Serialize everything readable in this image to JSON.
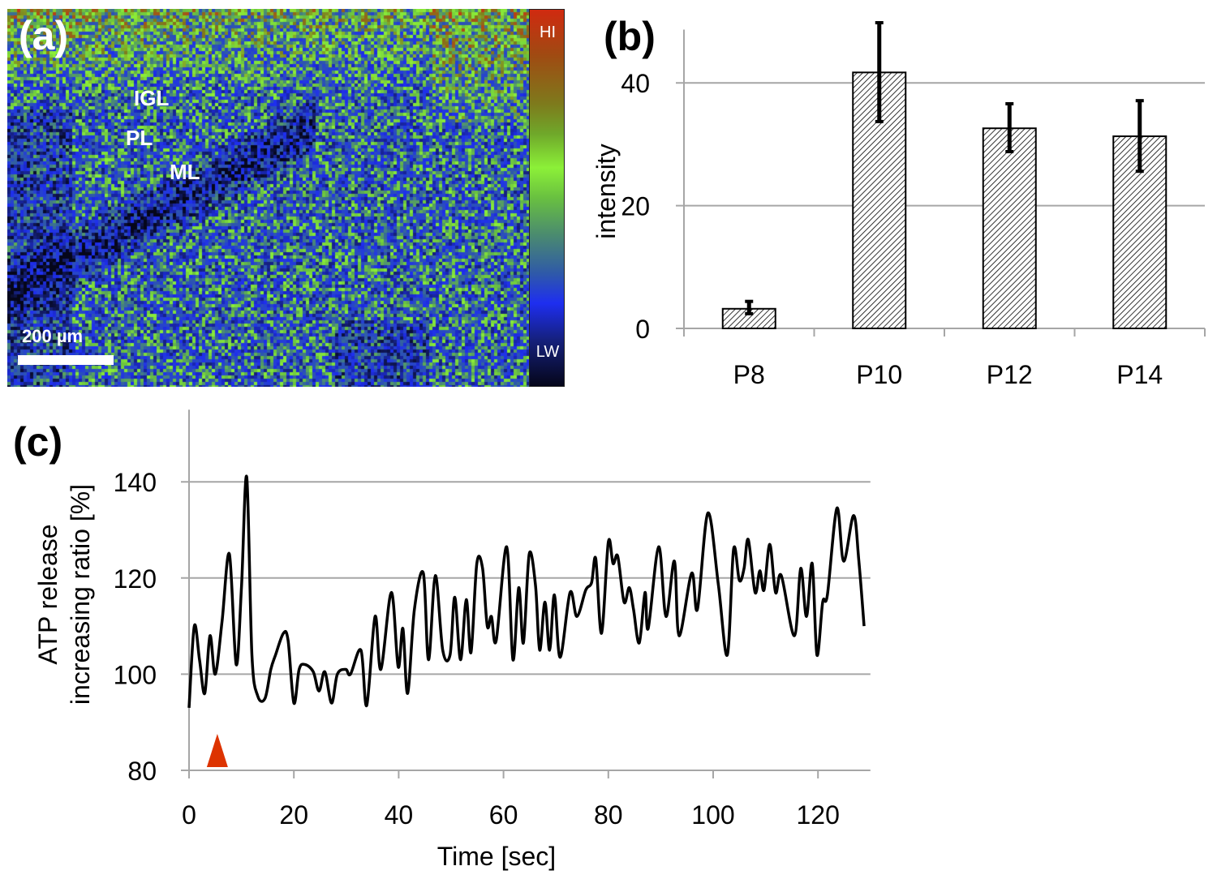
{
  "panel_a": {
    "label": "(a)",
    "layer_labels": [
      "IGL",
      "PL",
      "ML"
    ],
    "scale_bar_text": "200 µm",
    "colorbar": {
      "high_label": "HI",
      "low_label": "LW"
    }
  },
  "chart_data": [
    {
      "panel_label": "(b)",
      "type": "bar",
      "title": "",
      "xlabel": "",
      "ylabel": "intensity",
      "categories": [
        "P8",
        "P10",
        "P12",
        "P14"
      ],
      "values": [
        3.2,
        41.7,
        32.6,
        31.3
      ],
      "error_low": [
        2.4,
        33.7,
        28.8,
        25.6
      ],
      "error_high": [
        4.4,
        49.8,
        36.6,
        37.1
      ],
      "ylim": [
        0,
        50
      ],
      "yticks": [
        0,
        20,
        40
      ],
      "ytick_labels": [
        "0",
        "20",
        "40"
      ],
      "grid": true,
      "bar_fill": "diagonal-hatch",
      "colors": {
        "bar_stroke": "#000000",
        "grid": "#a6a6a6",
        "error_bar": "#000000"
      }
    },
    {
      "panel_label": "(c)",
      "type": "line",
      "title": "",
      "xlabel": "Time [sec]",
      "ylabel": [
        "ATP release",
        "increasing ratio [%]"
      ],
      "xlim": [
        0,
        130
      ],
      "ylim": [
        80,
        155
      ],
      "xticks": [
        0,
        20,
        40,
        60,
        80,
        100,
        120
      ],
      "xtick_labels": [
        "0",
        "20",
        "40",
        "60",
        "80",
        "100",
        "120"
      ],
      "yticks": [
        80,
        100,
        120,
        140
      ],
      "ytick_labels": [
        "80",
        "100",
        "120",
        "140"
      ],
      "grid": true,
      "marker": {
        "type": "triangle",
        "x": 5.4,
        "color": "#dd3300"
      },
      "series": [
        {
          "name": "ATP release",
          "color": "#000000",
          "x": [
            0,
            1,
            2,
            3,
            4,
            5,
            6.3,
            7.7,
            9,
            10,
            11,
            12,
            13.1,
            14.5,
            15.6,
            16.5,
            18,
            18.9,
            20,
            21,
            22.1,
            23.7,
            24.8,
            25.9,
            27.2,
            28.3,
            29.9,
            30.8,
            32.8,
            33.9,
            35.5,
            36.6,
            38.6,
            39.9,
            40.8,
            41.7,
            43,
            44.7,
            45.7,
            47,
            48.4,
            49.8,
            50.7,
            51.8,
            52.9,
            53.8,
            54.9,
            56,
            56.9,
            57.7,
            58.6,
            60.6,
            61.8,
            62.9,
            63.8,
            64.9,
            66.1,
            66.9,
            67.9,
            68.8,
            69.7,
            70.8,
            72.7,
            74,
            75.7,
            76.8,
            77.6,
            78.7,
            80,
            80.9,
            81.8,
            83,
            84,
            84.8,
            85.9,
            87,
            87.6,
            89.6,
            91,
            92.6,
            93.5,
            95.9,
            97,
            99,
            101,
            102.7,
            103.9,
            105,
            105.9,
            106.7,
            108,
            108.9,
            109.7,
            110.8,
            111.9,
            113,
            115.5,
            116.7,
            117.8,
            118.9,
            119.8,
            120.9,
            121.8,
            123.6,
            124.9,
            126.8,
            127.8,
            128.8
          ],
          "y": [
            93,
            110,
            103,
            96,
            108,
            100,
            111,
            125,
            102,
            118,
            141,
            104,
            95.5,
            95,
            101,
            104,
            108.5,
            107,
            94,
            101,
            102,
            100.5,
            96.5,
            100.5,
            94,
            100,
            101,
            100,
            105,
            93.5,
            112,
            101,
            117,
            101.5,
            109.5,
            96,
            113.5,
            121,
            103,
            120.5,
            105,
            104,
            116,
            103,
            115.5,
            104.5,
            123,
            122,
            110,
            112,
            107,
            126.5,
            103,
            118,
            106.5,
            125,
            118.5,
            105,
            115,
            105,
            116.5,
            103.5,
            117,
            112,
            117.5,
            119,
            124,
            108.5,
            127.5,
            123,
            124.5,
            115,
            118,
            113.5,
            106.5,
            117,
            109.5,
            126.5,
            112,
            123.5,
            108,
            121,
            113.5,
            133.5,
            118.5,
            104,
            126,
            119.5,
            122,
            128,
            117,
            121.5,
            117.5,
            127,
            117,
            120.5,
            108,
            122,
            112,
            123,
            104,
            115,
            116.5,
            134.5,
            123.5,
            133,
            123.5,
            110
          ]
        }
      ]
    }
  ]
}
